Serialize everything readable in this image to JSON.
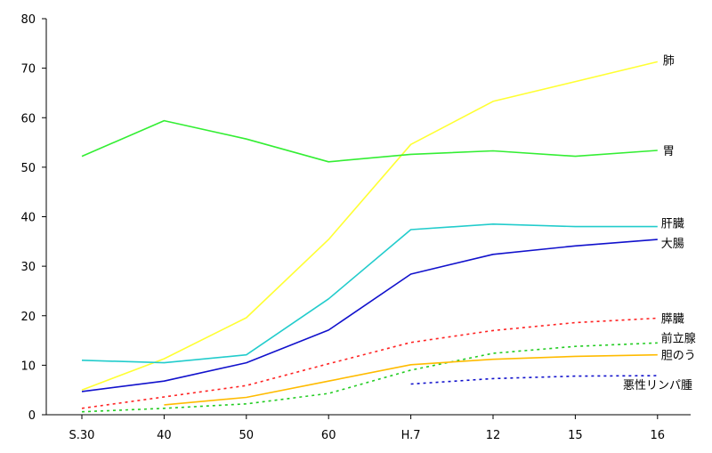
{
  "chart_data": {
    "type": "line",
    "x": [
      "S.30",
      "40",
      "50",
      "60",
      "H.7",
      "12",
      "15",
      "16"
    ],
    "ylim": [
      0,
      80
    ],
    "yticks": [
      0,
      10,
      20,
      30,
      40,
      50,
      60,
      70,
      80
    ],
    "grid": "none",
    "series": [
      {
        "name": "肺",
        "color": "#ffff33",
        "dash": false,
        "values": [
          5.0,
          11.3,
          19.6,
          35.4,
          54.6,
          63.3,
          null,
          71.3
        ]
      },
      {
        "name": "胃",
        "color": "#33ee33",
        "dash": false,
        "values": [
          52.2,
          59.4,
          55.7,
          51.1,
          52.6,
          53.3,
          52.2,
          53.4
        ]
      },
      {
        "name": "肝臓",
        "color": "#22cccc",
        "dash": false,
        "values": [
          11.0,
          10.5,
          12.1,
          23.4,
          37.4,
          38.5,
          38.0,
          38.0
        ]
      },
      {
        "name": "大腸",
        "color": "#1111cc",
        "dash": false,
        "values": [
          4.7,
          6.8,
          10.5,
          17.1,
          28.4,
          32.4,
          34.1,
          35.4
        ]
      },
      {
        "name": "膵臓",
        "color": "#ff2222",
        "dash": true,
        "values": [
          1.3,
          3.6,
          5.9,
          10.3,
          14.6,
          17.0,
          18.6,
          19.5
        ]
      },
      {
        "name": "前立腺",
        "color": "#22cc22",
        "dash": true,
        "values": [
          0.6,
          1.3,
          2.2,
          4.3,
          9.0,
          12.4,
          13.8,
          14.5
        ]
      },
      {
        "name": "胆のう",
        "color": "#ffbb00",
        "dash": false,
        "values": [
          null,
          2.0,
          3.5,
          6.8,
          10.1,
          11.2,
          11.8,
          12.1
        ]
      },
      {
        "name": "悪性リンパ腫",
        "color": "#1111cc",
        "dash": true,
        "values": [
          null,
          null,
          null,
          null,
          6.2,
          7.3,
          7.8,
          7.9
        ]
      }
    ]
  }
}
